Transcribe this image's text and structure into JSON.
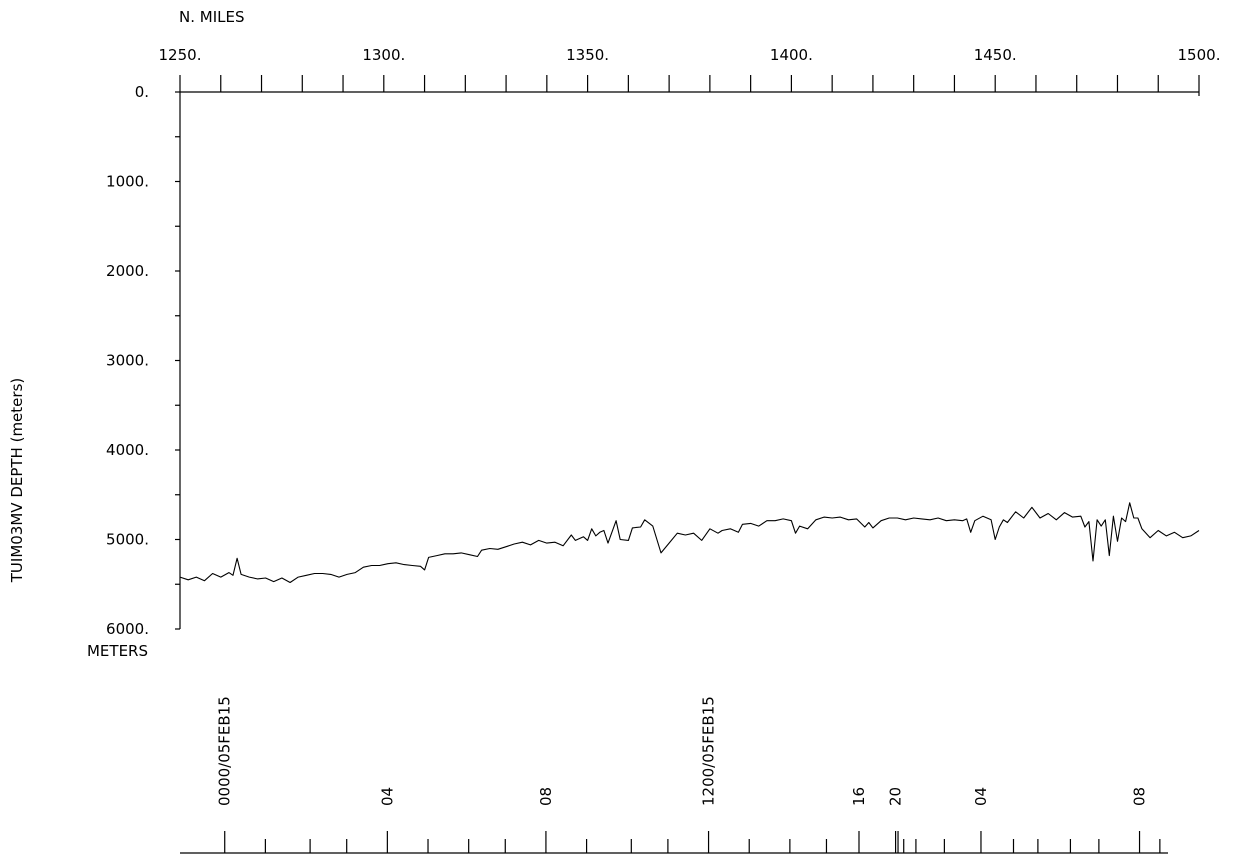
{
  "chart_data": {
    "type": "line",
    "title": "",
    "xlabel": "N. MILES",
    "ylabel": "TUIM03MV   DEPTH  (meters)",
    "yunit_label": "METERS",
    "xlim": [
      1250,
      1500
    ],
    "ylim": [
      0,
      6000
    ],
    "y_inverted": true,
    "grid": false,
    "x_ticks": [
      {
        "value": 1250,
        "label": "1250."
      },
      {
        "value": 1300,
        "label": "1300."
      },
      {
        "value": 1350,
        "label": "1350."
      },
      {
        "value": 1400,
        "label": "1400."
      },
      {
        "value": 1450,
        "label": "1450."
      },
      {
        "value": 1500,
        "label": "1500."
      }
    ],
    "x_minor_step": 10,
    "y_ticks": [
      {
        "value": 0,
        "label": "0."
      },
      {
        "value": 1000,
        "label": "1000."
      },
      {
        "value": 2000,
        "label": "2000."
      },
      {
        "value": 3000,
        "label": "3000."
      },
      {
        "value": 4000,
        "label": "4000."
      },
      {
        "value": 5000,
        "label": "5000."
      },
      {
        "value": 6000,
        "label": "6000."
      }
    ],
    "y_minor_step": 500,
    "time_axis": {
      "labels": [
        {
          "nm": 1261,
          "label": "0000/05FEB15"
        },
        {
          "nm": 1301,
          "label": "04"
        },
        {
          "nm": 1340,
          "label": "08"
        },
        {
          "nm": 1380,
          "label": "1200/05FEB15"
        },
        {
          "nm": 1417,
          "label": "16"
        },
        {
          "nm": 1426,
          "label": "20"
        },
        {
          "nm": 1447,
          "label": "04"
        },
        {
          "nm": 1486,
          "label": "08"
        }
      ],
      "ticks": [
        {
          "nm": 1261,
          "major": true
        },
        {
          "nm": 1271,
          "major": false
        },
        {
          "nm": 1282,
          "major": false
        },
        {
          "nm": 1291,
          "major": false
        },
        {
          "nm": 1301,
          "major": true
        },
        {
          "nm": 1311,
          "major": false
        },
        {
          "nm": 1321,
          "major": false
        },
        {
          "nm": 1330,
          "major": false
        },
        {
          "nm": 1340,
          "major": true
        },
        {
          "nm": 1350,
          "major": false
        },
        {
          "nm": 1361,
          "major": false
        },
        {
          "nm": 1370,
          "major": false
        },
        {
          "nm": 1380,
          "major": true
        },
        {
          "nm": 1390,
          "major": false
        },
        {
          "nm": 1400,
          "major": false
        },
        {
          "nm": 1409,
          "major": false
        },
        {
          "nm": 1417,
          "major": true
        },
        {
          "nm": 1426,
          "major": true
        },
        {
          "nm": 1426.6,
          "major": true
        },
        {
          "nm": 1428,
          "major": false
        },
        {
          "nm": 1431,
          "major": false
        },
        {
          "nm": 1438,
          "major": false
        },
        {
          "nm": 1447,
          "major": true
        },
        {
          "nm": 1455,
          "major": false
        },
        {
          "nm": 1461,
          "major": false
        },
        {
          "nm": 1469,
          "major": false
        },
        {
          "nm": 1476,
          "major": false
        },
        {
          "nm": 1486,
          "major": true
        },
        {
          "nm": 1491,
          "major": false
        }
      ]
    },
    "series": [
      {
        "name": "",
        "points": [
          [
            1250,
            5420
          ],
          [
            1252,
            5450
          ],
          [
            1254,
            5420
          ],
          [
            1256,
            5460
          ],
          [
            1258,
            5380
          ],
          [
            1260,
            5420
          ],
          [
            1262,
            5370
          ],
          [
            1263,
            5400
          ],
          [
            1264,
            5210
          ],
          [
            1265,
            5390
          ],
          [
            1267,
            5420
          ],
          [
            1269,
            5440
          ],
          [
            1271,
            5430
          ],
          [
            1273,
            5470
          ],
          [
            1275,
            5430
          ],
          [
            1277,
            5480
          ],
          [
            1279,
            5420
          ],
          [
            1281,
            5400
          ],
          [
            1283,
            5380
          ],
          [
            1285,
            5380
          ],
          [
            1287,
            5390
          ],
          [
            1289,
            5420
          ],
          [
            1291,
            5390
          ],
          [
            1293,
            5370
          ],
          [
            1295,
            5310
          ],
          [
            1297,
            5290
          ],
          [
            1299,
            5290
          ],
          [
            1301,
            5270
          ],
          [
            1303,
            5260
          ],
          [
            1305,
            5280
          ],
          [
            1307,
            5290
          ],
          [
            1309,
            5300
          ],
          [
            1310,
            5340
          ],
          [
            1311,
            5200
          ],
          [
            1313,
            5180
          ],
          [
            1315,
            5160
          ],
          [
            1317,
            5160
          ],
          [
            1319,
            5150
          ],
          [
            1321,
            5170
          ],
          [
            1323,
            5190
          ],
          [
            1324,
            5120
          ],
          [
            1326,
            5100
          ],
          [
            1328,
            5110
          ],
          [
            1330,
            5080
          ],
          [
            1332,
            5050
          ],
          [
            1334,
            5030
          ],
          [
            1336,
            5060
          ],
          [
            1338,
            5010
          ],
          [
            1340,
            5040
          ],
          [
            1342,
            5030
          ],
          [
            1344,
            5070
          ],
          [
            1346,
            4950
          ],
          [
            1347,
            5010
          ],
          [
            1349,
            4970
          ],
          [
            1350,
            5010
          ],
          [
            1351,
            4880
          ],
          [
            1352,
            4960
          ],
          [
            1353,
            4920
          ],
          [
            1354,
            4900
          ],
          [
            1355,
            5040
          ],
          [
            1357,
            4790
          ],
          [
            1358,
            5000
          ],
          [
            1360,
            5010
          ],
          [
            1361,
            4870
          ],
          [
            1363,
            4860
          ],
          [
            1364,
            4780
          ],
          [
            1366,
            4850
          ],
          [
            1368,
            5150
          ],
          [
            1370,
            5040
          ],
          [
            1372,
            4930
          ],
          [
            1374,
            4950
          ],
          [
            1376,
            4930
          ],
          [
            1378,
            5010
          ],
          [
            1380,
            4880
          ],
          [
            1382,
            4930
          ],
          [
            1383,
            4900
          ],
          [
            1385,
            4880
          ],
          [
            1387,
            4920
          ],
          [
            1388,
            4830
          ],
          [
            1390,
            4820
          ],
          [
            1392,
            4850
          ],
          [
            1394,
            4790
          ],
          [
            1396,
            4790
          ],
          [
            1398,
            4770
          ],
          [
            1400,
            4790
          ],
          [
            1401,
            4930
          ],
          [
            1402,
            4850
          ],
          [
            1404,
            4880
          ],
          [
            1406,
            4780
          ],
          [
            1408,
            4750
          ],
          [
            1410,
            4760
          ],
          [
            1412,
            4750
          ],
          [
            1414,
            4780
          ],
          [
            1416,
            4770
          ],
          [
            1418,
            4860
          ],
          [
            1419,
            4810
          ],
          [
            1420,
            4870
          ],
          [
            1422,
            4790
          ],
          [
            1424,
            4760
          ],
          [
            1426,
            4760
          ],
          [
            1428,
            4780
          ],
          [
            1430,
            4760
          ],
          [
            1432,
            4770
          ],
          [
            1434,
            4780
          ],
          [
            1436,
            4760
          ],
          [
            1438,
            4790
          ],
          [
            1440,
            4780
          ],
          [
            1442,
            4790
          ],
          [
            1443,
            4770
          ],
          [
            1444,
            4920
          ],
          [
            1445,
            4790
          ],
          [
            1447,
            4740
          ],
          [
            1449,
            4780
          ],
          [
            1450,
            5000
          ],
          [
            1451,
            4860
          ],
          [
            1452,
            4780
          ],
          [
            1453,
            4810
          ],
          [
            1455,
            4690
          ],
          [
            1457,
            4760
          ],
          [
            1459,
            4640
          ],
          [
            1461,
            4760
          ],
          [
            1463,
            4710
          ],
          [
            1465,
            4780
          ],
          [
            1467,
            4700
          ],
          [
            1469,
            4750
          ],
          [
            1471,
            4740
          ],
          [
            1472,
            4860
          ],
          [
            1473,
            4800
          ],
          [
            1474,
            5240
          ],
          [
            1475,
            4780
          ],
          [
            1476,
            4850
          ],
          [
            1477,
            4780
          ],
          [
            1478,
            5180
          ],
          [
            1479,
            4740
          ],
          [
            1480,
            5020
          ],
          [
            1481,
            4760
          ],
          [
            1482,
            4800
          ],
          [
            1483,
            4590
          ],
          [
            1484,
            4760
          ],
          [
            1485,
            4760
          ],
          [
            1486,
            4880
          ],
          [
            1488,
            4980
          ],
          [
            1490,
            4900
          ],
          [
            1492,
            4960
          ],
          [
            1494,
            4920
          ],
          [
            1496,
            4980
          ],
          [
            1498,
            4960
          ],
          [
            1500,
            4900
          ]
        ]
      }
    ]
  }
}
